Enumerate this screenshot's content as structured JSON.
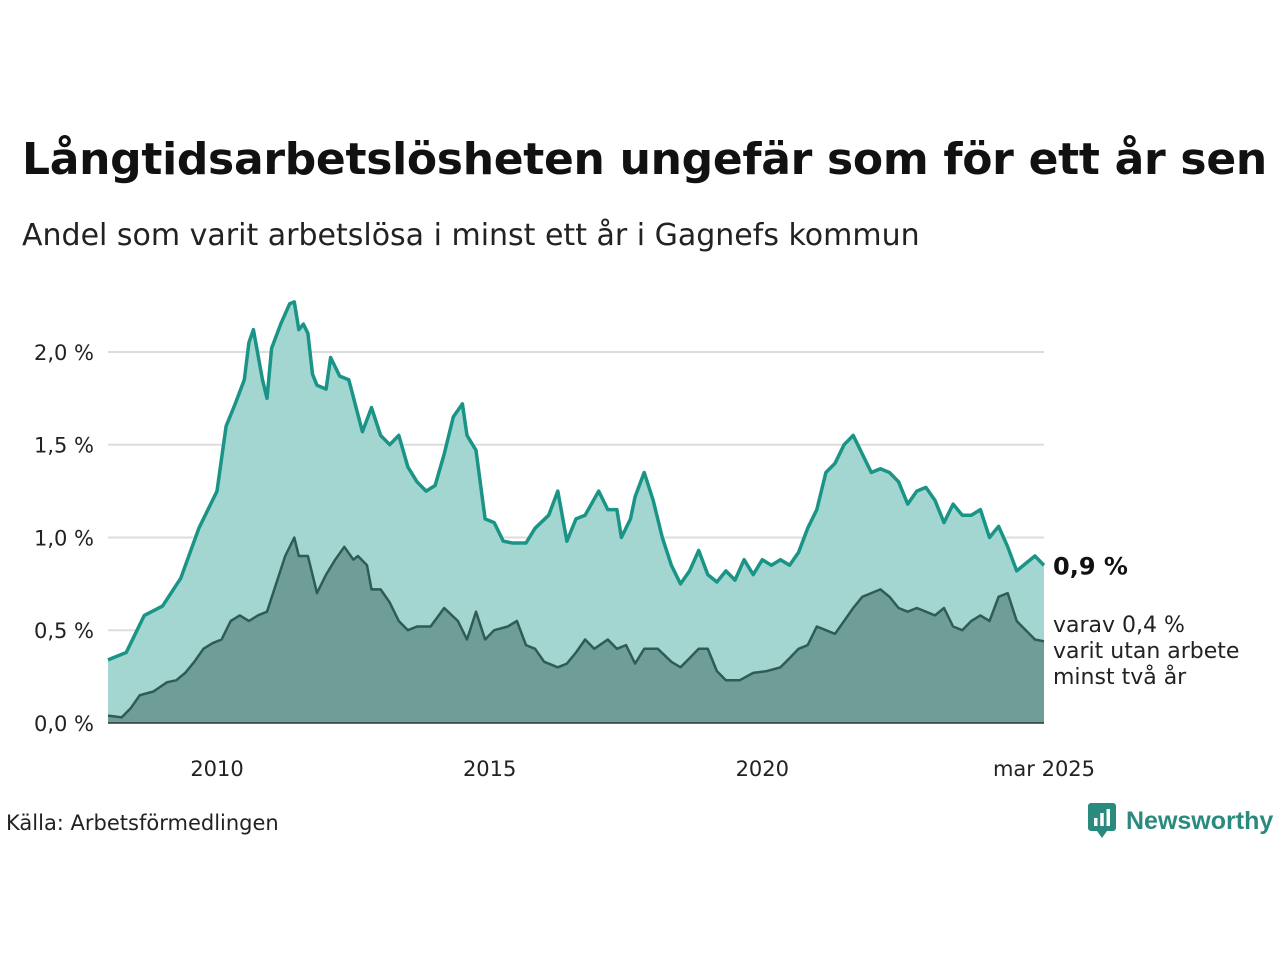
{
  "title": "Långtidsarbetslösheten ungefär som för ett år sen",
  "subtitle": "Andel som varit arbetslösa i minst ett år i Gagnefs kommun",
  "source": "Källa: Arbetsförmedlingen",
  "brand": "Newsworthy",
  "colors": {
    "series1_line": "#1a9486",
    "series1_fill": "#a3d6d1",
    "series2_line": "#2f5c55",
    "series2_fill": "#6f9e98",
    "gridline": "#dddddd",
    "brand": "#2a8a7e"
  },
  "chart_data": {
    "type": "area",
    "x_start": "2008-01",
    "x_end": "2025-03",
    "x_ticks": [
      {
        "label": "2010",
        "value": "2010-01"
      },
      {
        "label": "2015",
        "value": "2015-01"
      },
      {
        "label": "2020",
        "value": "2020-01"
      },
      {
        "label": "mar 2025",
        "value": "2025-03"
      }
    ],
    "y_ticks": [
      {
        "label": "0,0 %",
        "value": 0.0
      },
      {
        "label": "0,5 %",
        "value": 0.5
      },
      {
        "label": "1,0 %",
        "value": 1.0
      },
      {
        "label": "1,5 %",
        "value": 1.5
      },
      {
        "label": "2,0 %",
        "value": 2.0
      }
    ],
    "ylim": [
      0,
      2.28
    ],
    "grid": true,
    "end_label": "0,9 %",
    "end_sublabel": [
      "varav 0,4 %",
      "varit utan arbete",
      "minst två år"
    ],
    "series": [
      {
        "points": [
          [
            "2008-01",
            0.34
          ],
          [
            "2008-05",
            0.38
          ],
          [
            "2008-09",
            0.58
          ],
          [
            "2009-01",
            0.63
          ],
          [
            "2009-05",
            0.78
          ],
          [
            "2009-09",
            1.05
          ],
          [
            "2010-01",
            1.25
          ],
          [
            "2010-03",
            1.6
          ],
          [
            "2010-05",
            1.72
          ],
          [
            "2010-07",
            1.85
          ],
          [
            "2010-08",
            2.05
          ],
          [
            "2010-09",
            2.12
          ],
          [
            "2010-11",
            1.85
          ],
          [
            "2010-12",
            1.75
          ],
          [
            "2011-01",
            2.02
          ],
          [
            "2011-03",
            2.15
          ],
          [
            "2011-05",
            2.26
          ],
          [
            "2011-06",
            2.27
          ],
          [
            "2011-07",
            2.12
          ],
          [
            "2011-08",
            2.15
          ],
          [
            "2011-09",
            2.1
          ],
          [
            "2011-10",
            1.88
          ],
          [
            "2011-11",
            1.82
          ],
          [
            "2012-01",
            1.8
          ],
          [
            "2012-02",
            1.97
          ],
          [
            "2012-04",
            1.87
          ],
          [
            "2012-06",
            1.85
          ],
          [
            "2012-09",
            1.57
          ],
          [
            "2012-11",
            1.7
          ],
          [
            "2013-01",
            1.55
          ],
          [
            "2013-03",
            1.5
          ],
          [
            "2013-05",
            1.55
          ],
          [
            "2013-07",
            1.38
          ],
          [
            "2013-09",
            1.3
          ],
          [
            "2013-11",
            1.25
          ],
          [
            "2014-01",
            1.28
          ],
          [
            "2014-03",
            1.45
          ],
          [
            "2014-05",
            1.65
          ],
          [
            "2014-07",
            1.72
          ],
          [
            "2014-08",
            1.55
          ],
          [
            "2014-10",
            1.47
          ],
          [
            "2014-12",
            1.1
          ],
          [
            "2015-02",
            1.08
          ],
          [
            "2015-04",
            0.98
          ],
          [
            "2015-06",
            0.97
          ],
          [
            "2015-09",
            0.97
          ],
          [
            "2015-11",
            1.05
          ],
          [
            "2016-02",
            1.12
          ],
          [
            "2016-04",
            1.25
          ],
          [
            "2016-06",
            0.98
          ],
          [
            "2016-08",
            1.1
          ],
          [
            "2016-10",
            1.12
          ],
          [
            "2017-01",
            1.25
          ],
          [
            "2017-03",
            1.15
          ],
          [
            "2017-05",
            1.15
          ],
          [
            "2017-06",
            1.0
          ],
          [
            "2017-08",
            1.1
          ],
          [
            "2017-09",
            1.22
          ],
          [
            "2017-11",
            1.35
          ],
          [
            "2018-01",
            1.2
          ],
          [
            "2018-03",
            1.0
          ],
          [
            "2018-05",
            0.85
          ],
          [
            "2018-07",
            0.75
          ],
          [
            "2018-09",
            0.82
          ],
          [
            "2018-11",
            0.93
          ],
          [
            "2019-01",
            0.8
          ],
          [
            "2019-03",
            0.76
          ],
          [
            "2019-05",
            0.82
          ],
          [
            "2019-07",
            0.77
          ],
          [
            "2019-09",
            0.88
          ],
          [
            "2019-11",
            0.8
          ],
          [
            "2020-01",
            0.88
          ],
          [
            "2020-03",
            0.85
          ],
          [
            "2020-05",
            0.88
          ],
          [
            "2020-07",
            0.85
          ],
          [
            "2020-09",
            0.92
          ],
          [
            "2020-11",
            1.05
          ],
          [
            "2021-01",
            1.15
          ],
          [
            "2021-03",
            1.35
          ],
          [
            "2021-05",
            1.4
          ],
          [
            "2021-07",
            1.5
          ],
          [
            "2021-09",
            1.55
          ],
          [
            "2021-11",
            1.45
          ],
          [
            "2022-01",
            1.35
          ],
          [
            "2022-03",
            1.37
          ],
          [
            "2022-05",
            1.35
          ],
          [
            "2022-07",
            1.3
          ],
          [
            "2022-09",
            1.18
          ],
          [
            "2022-11",
            1.25
          ],
          [
            "2023-01",
            1.27
          ],
          [
            "2023-03",
            1.2
          ],
          [
            "2023-05",
            1.08
          ],
          [
            "2023-07",
            1.18
          ],
          [
            "2023-09",
            1.12
          ],
          [
            "2023-11",
            1.12
          ],
          [
            "2024-01",
            1.15
          ],
          [
            "2024-03",
            1.0
          ],
          [
            "2024-05",
            1.06
          ],
          [
            "2024-07",
            0.95
          ],
          [
            "2024-09",
            0.82
          ],
          [
            "2024-11",
            0.86
          ],
          [
            "2025-01",
            0.9
          ],
          [
            "2025-03",
            0.85
          ]
        ]
      },
      {
        "points": [
          [
            "2008-01",
            0.04
          ],
          [
            "2008-04",
            0.03
          ],
          [
            "2008-06",
            0.08
          ],
          [
            "2008-08",
            0.15
          ],
          [
            "2008-11",
            0.17
          ],
          [
            "2009-02",
            0.22
          ],
          [
            "2009-04",
            0.23
          ],
          [
            "2009-06",
            0.27
          ],
          [
            "2009-08",
            0.33
          ],
          [
            "2009-10",
            0.4
          ],
          [
            "2009-12",
            0.43
          ],
          [
            "2010-02",
            0.45
          ],
          [
            "2010-04",
            0.55
          ],
          [
            "2010-06",
            0.58
          ],
          [
            "2010-08",
            0.55
          ],
          [
            "2010-10",
            0.58
          ],
          [
            "2010-12",
            0.6
          ],
          [
            "2011-02",
            0.75
          ],
          [
            "2011-04",
            0.9
          ],
          [
            "2011-06",
            1.0
          ],
          [
            "2011-07",
            0.9
          ],
          [
            "2011-09",
            0.9
          ],
          [
            "2011-11",
            0.7
          ],
          [
            "2012-01",
            0.8
          ],
          [
            "2012-03",
            0.88
          ],
          [
            "2012-05",
            0.95
          ],
          [
            "2012-07",
            0.88
          ],
          [
            "2012-08",
            0.9
          ],
          [
            "2012-10",
            0.85
          ],
          [
            "2012-11",
            0.72
          ],
          [
            "2013-01",
            0.72
          ],
          [
            "2013-03",
            0.65
          ],
          [
            "2013-05",
            0.55
          ],
          [
            "2013-07",
            0.5
          ],
          [
            "2013-09",
            0.52
          ],
          [
            "2013-12",
            0.52
          ],
          [
            "2014-03",
            0.62
          ],
          [
            "2014-06",
            0.55
          ],
          [
            "2014-08",
            0.45
          ],
          [
            "2014-10",
            0.6
          ],
          [
            "2014-12",
            0.45
          ],
          [
            "2015-02",
            0.5
          ],
          [
            "2015-05",
            0.52
          ],
          [
            "2015-07",
            0.55
          ],
          [
            "2015-09",
            0.42
          ],
          [
            "2015-11",
            0.4
          ],
          [
            "2016-01",
            0.33
          ],
          [
            "2016-04",
            0.3
          ],
          [
            "2016-06",
            0.32
          ],
          [
            "2016-08",
            0.38
          ],
          [
            "2016-10",
            0.45
          ],
          [
            "2016-12",
            0.4
          ],
          [
            "2017-03",
            0.45
          ],
          [
            "2017-05",
            0.4
          ],
          [
            "2017-07",
            0.42
          ],
          [
            "2017-09",
            0.32
          ],
          [
            "2017-11",
            0.4
          ],
          [
            "2018-02",
            0.4
          ],
          [
            "2018-05",
            0.33
          ],
          [
            "2018-07",
            0.3
          ],
          [
            "2018-09",
            0.35
          ],
          [
            "2018-11",
            0.4
          ],
          [
            "2019-01",
            0.4
          ],
          [
            "2019-03",
            0.28
          ],
          [
            "2019-05",
            0.23
          ],
          [
            "2019-08",
            0.23
          ],
          [
            "2019-11",
            0.27
          ],
          [
            "2020-02",
            0.28
          ],
          [
            "2020-05",
            0.3
          ],
          [
            "2020-07",
            0.35
          ],
          [
            "2020-09",
            0.4
          ],
          [
            "2020-11",
            0.42
          ],
          [
            "2021-01",
            0.52
          ],
          [
            "2021-03",
            0.5
          ],
          [
            "2021-05",
            0.48
          ],
          [
            "2021-07",
            0.55
          ],
          [
            "2021-09",
            0.62
          ],
          [
            "2021-11",
            0.68
          ],
          [
            "2022-01",
            0.7
          ],
          [
            "2022-03",
            0.72
          ],
          [
            "2022-05",
            0.68
          ],
          [
            "2022-07",
            0.62
          ],
          [
            "2022-09",
            0.6
          ],
          [
            "2022-11",
            0.62
          ],
          [
            "2023-01",
            0.6
          ],
          [
            "2023-03",
            0.58
          ],
          [
            "2023-05",
            0.62
          ],
          [
            "2023-07",
            0.52
          ],
          [
            "2023-09",
            0.5
          ],
          [
            "2023-11",
            0.55
          ],
          [
            "2024-01",
            0.58
          ],
          [
            "2024-03",
            0.55
          ],
          [
            "2024-05",
            0.68
          ],
          [
            "2024-07",
            0.7
          ],
          [
            "2024-09",
            0.55
          ],
          [
            "2024-11",
            0.5
          ],
          [
            "2025-01",
            0.45
          ],
          [
            "2025-03",
            0.44
          ]
        ]
      }
    ]
  }
}
